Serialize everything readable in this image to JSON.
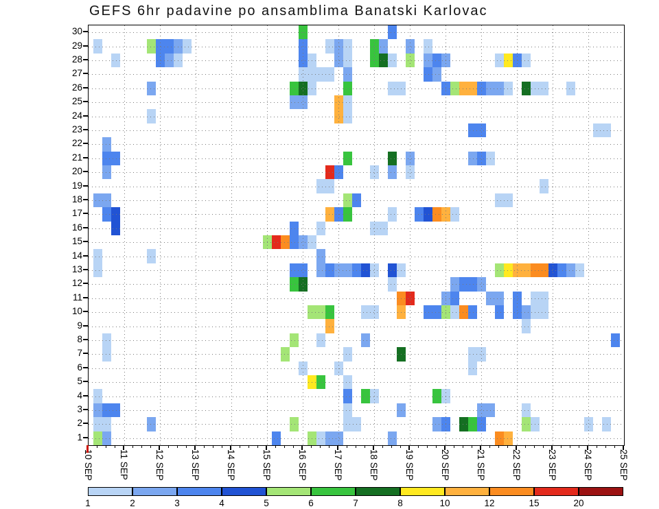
{
  "title": "GEFS 6hr padavine po ansamblima Banatski Karlovac",
  "colors": {
    "background": "#ffffff",
    "frame": "#000000",
    "grid": "#777777",
    "origin_mark": "#cc1100"
  },
  "chart_data": {
    "type": "heatmap",
    "title": "GEFS 6hr padavine po ansamblima Banatski Karlovac",
    "xlabel": "",
    "ylabel": "",
    "grid": "dotted",
    "x_ticks": [
      "10 SEP",
      "11 SEP",
      "12 SEP",
      "13 SEP",
      "14 SEP",
      "15 SEP",
      "16 SEP",
      "17 SEP",
      "18 SEP",
      "19 SEP",
      "20 SEP",
      "21 SEP",
      "22 SEP",
      "23 SEP",
      "24 SEP",
      "25 SEP"
    ],
    "steps_per_day": 4,
    "y_ticks": [
      "1",
      "2",
      "3",
      "4",
      "5",
      "6",
      "7",
      "8",
      "9",
      "10",
      "11",
      "12",
      "13",
      "14",
      "15",
      "16",
      "17",
      "18",
      "19",
      "20",
      "21",
      "22",
      "23",
      "24",
      "25",
      "26",
      "27",
      "28",
      "29",
      "30"
    ],
    "ylim": [
      1,
      30
    ],
    "legend": {
      "position": "bottom",
      "values": [
        1,
        2,
        3,
        4,
        5,
        6,
        7,
        8,
        10,
        12,
        15,
        20
      ],
      "labels": [
        "1",
        "2",
        "3",
        "4",
        "5",
        "6",
        "7",
        "8",
        "10",
        "12",
        "15",
        "20"
      ],
      "colors": [
        "#b8d4f5",
        "#7ba7f0",
        "#4d85ee",
        "#2153d4",
        "#a4e576",
        "#38c43e",
        "#156f22",
        "#ffe920",
        "#ffb13e",
        "#fb8c20",
        "#e32a1c",
        "#9c1212"
      ]
    },
    "cell_format": "[ensemble_member, six_hour_step_index_from_10_SEP_00Z, precip_category_mm]",
    "cells": [
      [
        30,
        24,
        6
      ],
      [
        30,
        34,
        3
      ],
      [
        29,
        1,
        1
      ],
      [
        29,
        7,
        5
      ],
      [
        29,
        8,
        3
      ],
      [
        29,
        9,
        3
      ],
      [
        29,
        10,
        2
      ],
      [
        29,
        11,
        1
      ],
      [
        29,
        24,
        3
      ],
      [
        29,
        27,
        1
      ],
      [
        29,
        28,
        2
      ],
      [
        29,
        29,
        1
      ],
      [
        29,
        32,
        6
      ],
      [
        29,
        33,
        2
      ],
      [
        29,
        36,
        2
      ],
      [
        29,
        38,
        1
      ],
      [
        28,
        3,
        1
      ],
      [
        28,
        8,
        3
      ],
      [
        28,
        9,
        2
      ],
      [
        28,
        10,
        1
      ],
      [
        28,
        24,
        3
      ],
      [
        28,
        25,
        1
      ],
      [
        28,
        28,
        2
      ],
      [
        28,
        29,
        1
      ],
      [
        28,
        32,
        6
      ],
      [
        28,
        33,
        7
      ],
      [
        28,
        34,
        1
      ],
      [
        28,
        36,
        5
      ],
      [
        28,
        38,
        2
      ],
      [
        28,
        39,
        3
      ],
      [
        28,
        40,
        2
      ],
      [
        28,
        46,
        1
      ],
      [
        28,
        47,
        8
      ],
      [
        28,
        48,
        3
      ],
      [
        28,
        49,
        1
      ],
      [
        27,
        24,
        1
      ],
      [
        27,
        25,
        1
      ],
      [
        27,
        26,
        1
      ],
      [
        27,
        27,
        1
      ],
      [
        27,
        29,
        2
      ],
      [
        27,
        38,
        3
      ],
      [
        27,
        39,
        2
      ],
      [
        26,
        7,
        2
      ],
      [
        26,
        23,
        6
      ],
      [
        26,
        24,
        7
      ],
      [
        26,
        25,
        1
      ],
      [
        26,
        29,
        6
      ],
      [
        26,
        34,
        1
      ],
      [
        26,
        35,
        1
      ],
      [
        26,
        40,
        3
      ],
      [
        26,
        41,
        5
      ],
      [
        26,
        42,
        10
      ],
      [
        26,
        43,
        10
      ],
      [
        26,
        44,
        3
      ],
      [
        26,
        45,
        2
      ],
      [
        26,
        46,
        2
      ],
      [
        26,
        47,
        1
      ],
      [
        26,
        49,
        7
      ],
      [
        26,
        50,
        1
      ],
      [
        26,
        51,
        1
      ],
      [
        26,
        54,
        1
      ],
      [
        25,
        23,
        2
      ],
      [
        25,
        24,
        2
      ],
      [
        25,
        28,
        10
      ],
      [
        25,
        29,
        1
      ],
      [
        24,
        7,
        1
      ],
      [
        24,
        28,
        10
      ],
      [
        24,
        29,
        1
      ],
      [
        23,
        43,
        3
      ],
      [
        23,
        44,
        3
      ],
      [
        23,
        57,
        1
      ],
      [
        23,
        58,
        1
      ],
      [
        22,
        2,
        2
      ],
      [
        21,
        2,
        3
      ],
      [
        21,
        3,
        3
      ],
      [
        21,
        29,
        6
      ],
      [
        21,
        34,
        7
      ],
      [
        21,
        36,
        2
      ],
      [
        21,
        43,
        2
      ],
      [
        21,
        44,
        3
      ],
      [
        21,
        45,
        1
      ],
      [
        20,
        2,
        2
      ],
      [
        20,
        27,
        15
      ],
      [
        20,
        28,
        3
      ],
      [
        20,
        32,
        1
      ],
      [
        20,
        34,
        2
      ],
      [
        20,
        36,
        1
      ],
      [
        19,
        26,
        1
      ],
      [
        19,
        27,
        1
      ],
      [
        19,
        51,
        1
      ],
      [
        18,
        1,
        2
      ],
      [
        18,
        2,
        2
      ],
      [
        18,
        29,
        5
      ],
      [
        18,
        30,
        3
      ],
      [
        18,
        46,
        1
      ],
      [
        18,
        47,
        1
      ],
      [
        17,
        2,
        3
      ],
      [
        17,
        3,
        4
      ],
      [
        17,
        27,
        10
      ],
      [
        17,
        28,
        3
      ],
      [
        17,
        29,
        6
      ],
      [
        17,
        34,
        1
      ],
      [
        17,
        37,
        3
      ],
      [
        17,
        38,
        4
      ],
      [
        17,
        39,
        12
      ],
      [
        17,
        40,
        10
      ],
      [
        17,
        41,
        1
      ],
      [
        16,
        3,
        4
      ],
      [
        16,
        23,
        3
      ],
      [
        16,
        26,
        1
      ],
      [
        16,
        32,
        1
      ],
      [
        16,
        33,
        1
      ],
      [
        15,
        20,
        5
      ],
      [
        15,
        21,
        15
      ],
      [
        15,
        22,
        12
      ],
      [
        15,
        23,
        3
      ],
      [
        15,
        24,
        2
      ],
      [
        15,
        25,
        1
      ],
      [
        14,
        1,
        1
      ],
      [
        14,
        7,
        1
      ],
      [
        14,
        26,
        2
      ],
      [
        13,
        1,
        1
      ],
      [
        13,
        23,
        3
      ],
      [
        13,
        24,
        3
      ],
      [
        13,
        26,
        2
      ],
      [
        13,
        27,
        3
      ],
      [
        13,
        28,
        2
      ],
      [
        13,
        29,
        2
      ],
      [
        13,
        30,
        3
      ],
      [
        13,
        31,
        4
      ],
      [
        13,
        32,
        1
      ],
      [
        13,
        34,
        4
      ],
      [
        13,
        35,
        1
      ],
      [
        13,
        46,
        5
      ],
      [
        13,
        47,
        8
      ],
      [
        13,
        48,
        10
      ],
      [
        13,
        49,
        10
      ],
      [
        13,
        50,
        12
      ],
      [
        13,
        51,
        12
      ],
      [
        13,
        52,
        4
      ],
      [
        13,
        53,
        3
      ],
      [
        13,
        54,
        2
      ],
      [
        13,
        55,
        1
      ],
      [
        12,
        23,
        6
      ],
      [
        12,
        24,
        7
      ],
      [
        12,
        34,
        1
      ],
      [
        12,
        41,
        2
      ],
      [
        12,
        42,
        3
      ],
      [
        12,
        43,
        3
      ],
      [
        12,
        44,
        2
      ],
      [
        11,
        35,
        12
      ],
      [
        11,
        36,
        15
      ],
      [
        11,
        40,
        2
      ],
      [
        11,
        41,
        3
      ],
      [
        11,
        45,
        2
      ],
      [
        11,
        46,
        2
      ],
      [
        11,
        48,
        3
      ],
      [
        11,
        50,
        1
      ],
      [
        11,
        51,
        1
      ],
      [
        10,
        25,
        5
      ],
      [
        10,
        26,
        5
      ],
      [
        10,
        27,
        6
      ],
      [
        10,
        31,
        1
      ],
      [
        10,
        32,
        1
      ],
      [
        10,
        35,
        10
      ],
      [
        10,
        38,
        3
      ],
      [
        10,
        39,
        3
      ],
      [
        10,
        40,
        5
      ],
      [
        10,
        41,
        1
      ],
      [
        10,
        42,
        12
      ],
      [
        10,
        43,
        3
      ],
      [
        10,
        46,
        3
      ],
      [
        10,
        48,
        3
      ],
      [
        10,
        49,
        2
      ],
      [
        10,
        50,
        1
      ],
      [
        10,
        51,
        1
      ],
      [
        9,
        27,
        10
      ],
      [
        9,
        49,
        1
      ],
      [
        8,
        2,
        1
      ],
      [
        8,
        23,
        5
      ],
      [
        8,
        26,
        1
      ],
      [
        8,
        31,
        2
      ],
      [
        8,
        59,
        3
      ],
      [
        7,
        2,
        1
      ],
      [
        7,
        22,
        5
      ],
      [
        7,
        29,
        1
      ],
      [
        7,
        35,
        7
      ],
      [
        7,
        43,
        1
      ],
      [
        7,
        44,
        1
      ],
      [
        6,
        24,
        1
      ],
      [
        6,
        28,
        1
      ],
      [
        6,
        43,
        1
      ],
      [
        5,
        25,
        8
      ],
      [
        5,
        26,
        6
      ],
      [
        5,
        29,
        1
      ],
      [
        4,
        1,
        1
      ],
      [
        4,
        29,
        3
      ],
      [
        4,
        31,
        6
      ],
      [
        4,
        32,
        1
      ],
      [
        4,
        39,
        6
      ],
      [
        4,
        40,
        1
      ],
      [
        3,
        1,
        2
      ],
      [
        3,
        2,
        3
      ],
      [
        3,
        3,
        3
      ],
      [
        3,
        29,
        1
      ],
      [
        3,
        35,
        2
      ],
      [
        3,
        44,
        2
      ],
      [
        3,
        45,
        2
      ],
      [
        3,
        49,
        1
      ],
      [
        2,
        1,
        1
      ],
      [
        2,
        2,
        1
      ],
      [
        2,
        7,
        2
      ],
      [
        2,
        23,
        5
      ],
      [
        2,
        29,
        1
      ],
      [
        2,
        30,
        1
      ],
      [
        2,
        39,
        2
      ],
      [
        2,
        40,
        3
      ],
      [
        2,
        42,
        7
      ],
      [
        2,
        43,
        6
      ],
      [
        2,
        44,
        3
      ],
      [
        2,
        49,
        5
      ],
      [
        2,
        50,
        1
      ],
      [
        2,
        56,
        1
      ],
      [
        2,
        58,
        1
      ],
      [
        1,
        1,
        5
      ],
      [
        1,
        2,
        2
      ],
      [
        1,
        21,
        3
      ],
      [
        1,
        25,
        5
      ],
      [
        1,
        26,
        1
      ],
      [
        1,
        27,
        2
      ],
      [
        1,
        28,
        2
      ],
      [
        1,
        34,
        2
      ],
      [
        1,
        46,
        12
      ],
      [
        1,
        47,
        10
      ]
    ]
  }
}
